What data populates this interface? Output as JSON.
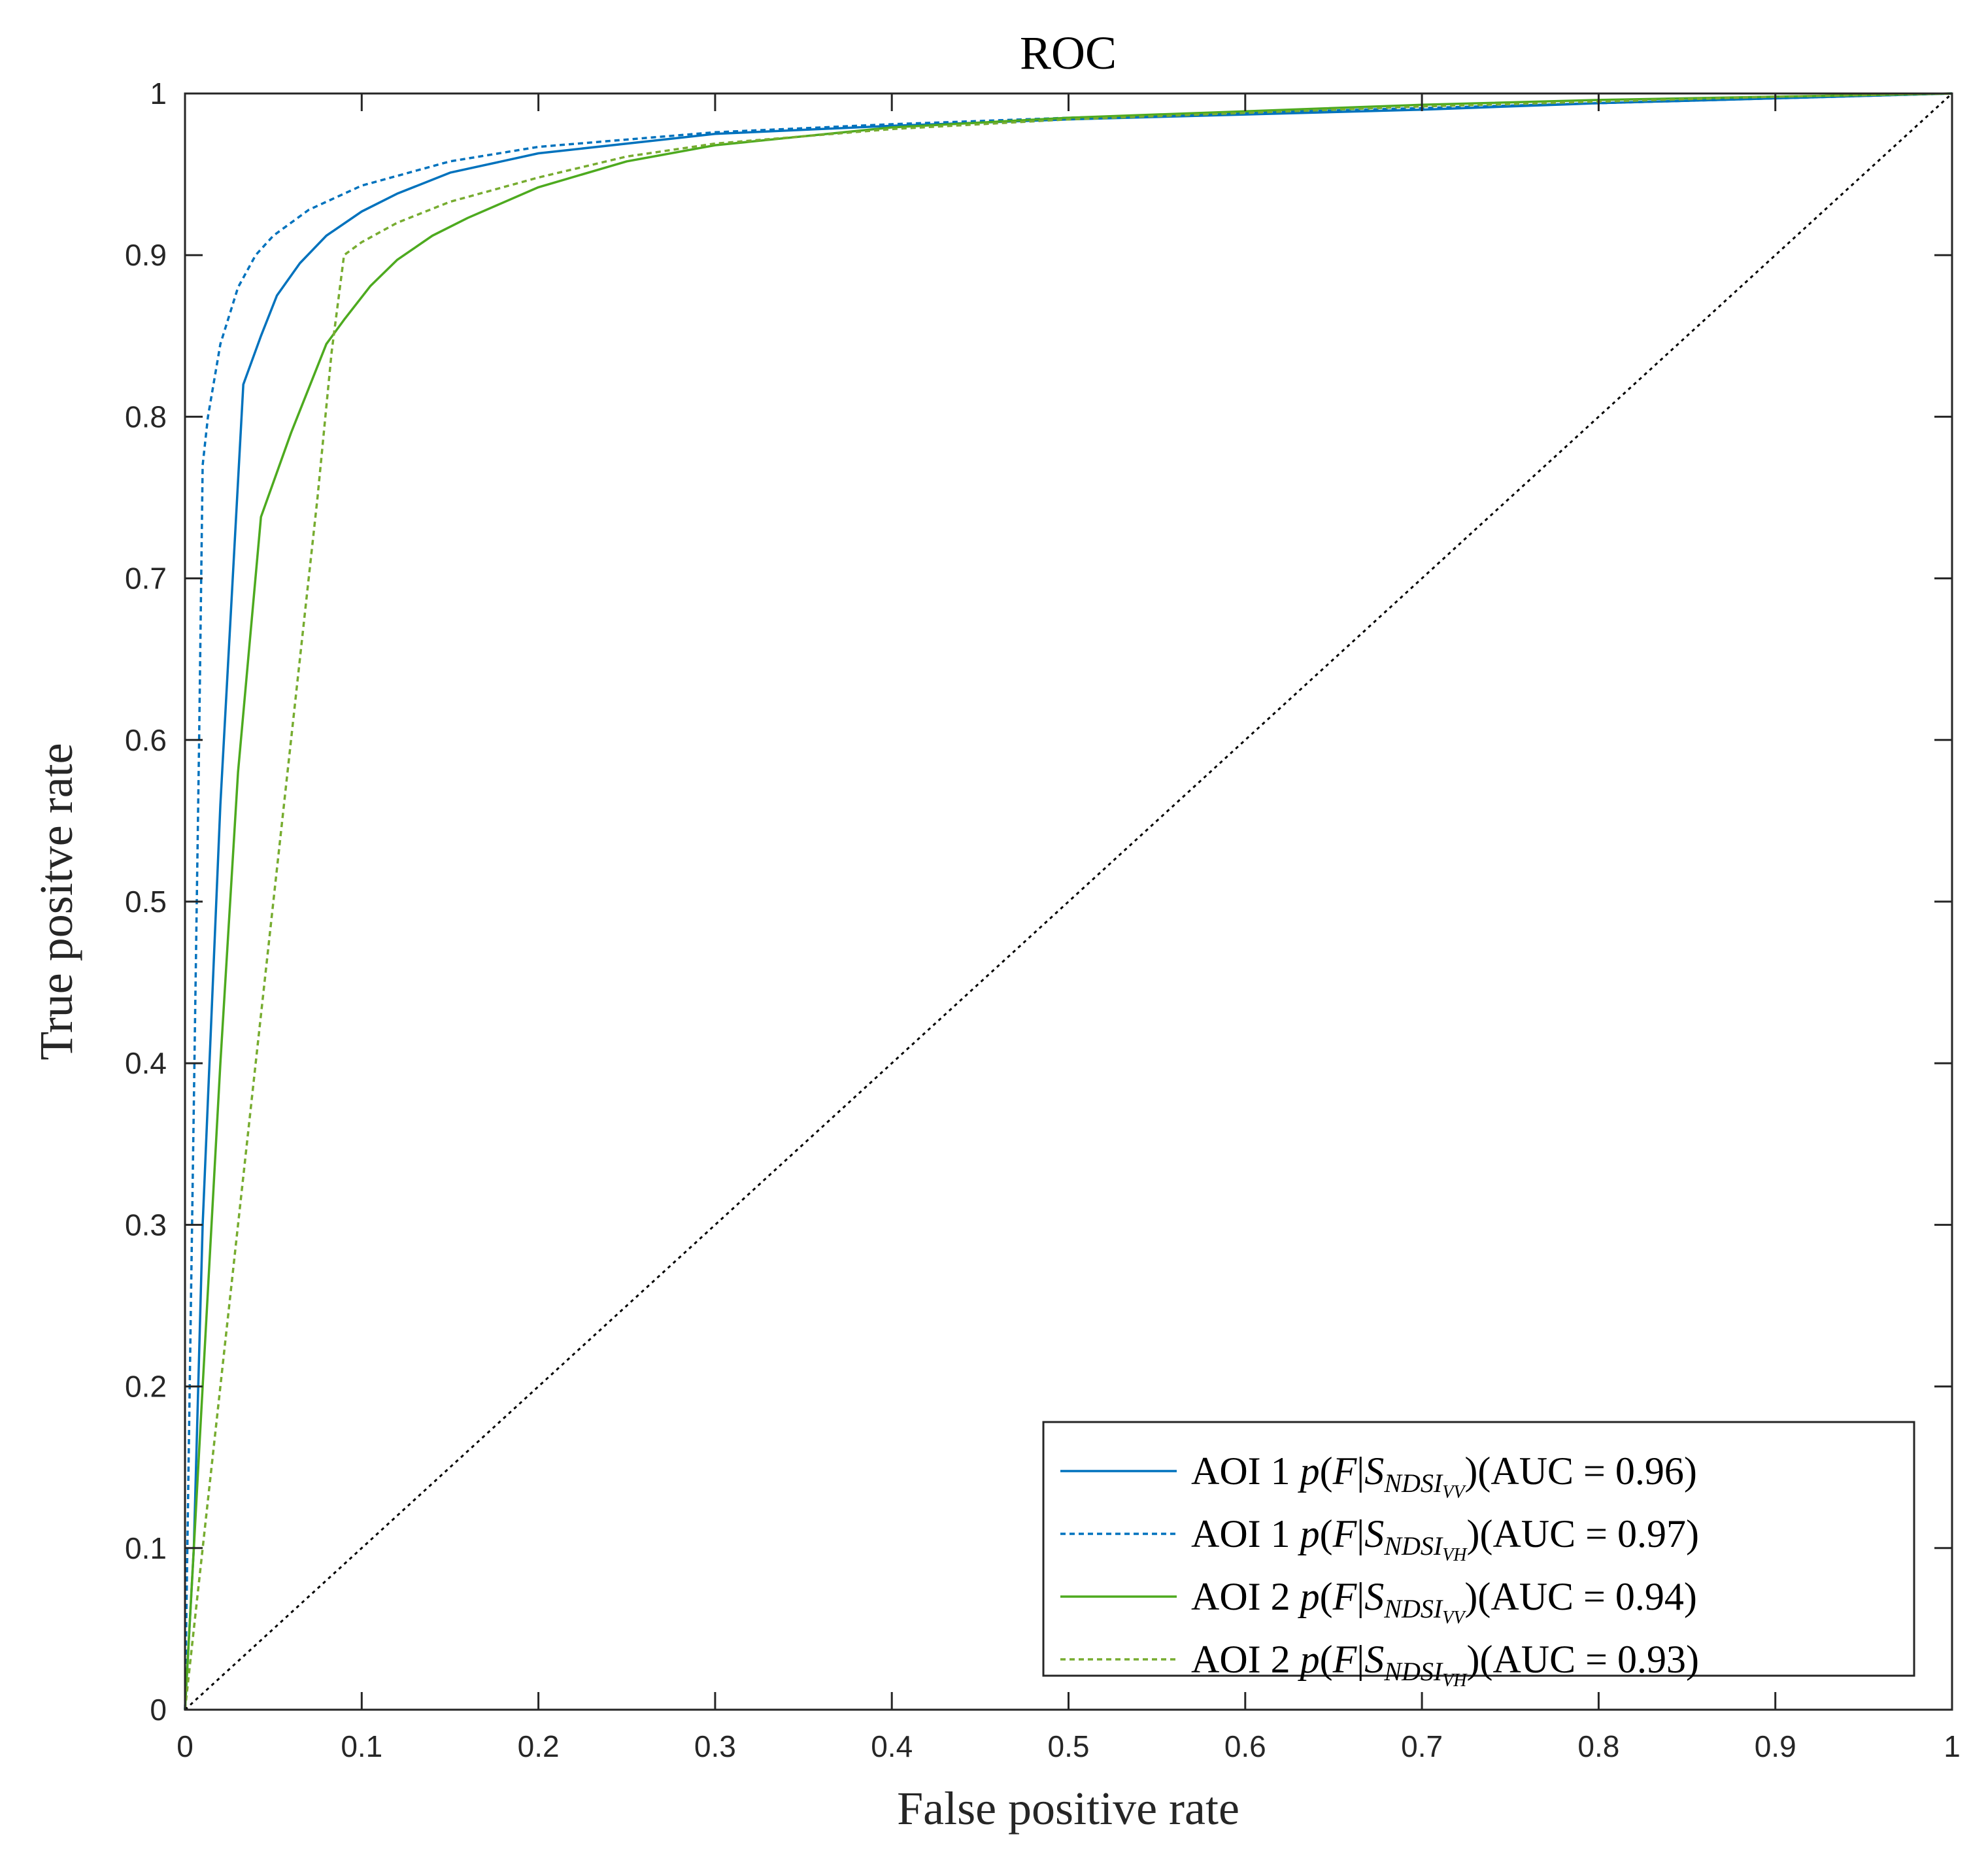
{
  "chart_data": {
    "type": "line",
    "title": "ROC",
    "xlabel": "False positive rate",
    "ylabel": "True positve rate",
    "xlim": [
      0,
      1
    ],
    "ylim": [
      0,
      1
    ],
    "xticks": [
      "0",
      "0.1",
      "0.2",
      "0.3",
      "0.4",
      "0.5",
      "0.6",
      "0.7",
      "0.8",
      "0.9",
      "1"
    ],
    "yticks": [
      "0",
      "0.1",
      "0.2",
      "0.3",
      "0.4",
      "0.5",
      "0.6",
      "0.7",
      "0.8",
      "0.9",
      "1"
    ],
    "grid": false,
    "legend_position": "bottom-right",
    "series": [
      {
        "legend": {
          "prefix": "AOI 1 ",
          "p": "p",
          "open": "(",
          "F": "F",
          "bar": "|",
          "S": "S",
          "sub": "NDSI",
          "subsub": "VV",
          "close": ")",
          "auc": "(AUC = 0.96)"
        },
        "color": "#0072BD",
        "dash": "solid",
        "x": [
          0,
          0.005,
          0.01,
          0.02,
          0.033,
          0.043,
          0.052,
          0.065,
          0.08,
          0.1,
          0.12,
          0.15,
          0.2,
          0.3,
          0.4,
          0.5,
          0.6,
          0.7,
          0.8,
          0.9,
          1.0
        ],
        "y": [
          0,
          0.1,
          0.3,
          0.56,
          0.82,
          0.85,
          0.875,
          0.895,
          0.912,
          0.927,
          0.938,
          0.951,
          0.963,
          0.975,
          0.98,
          0.984,
          0.987,
          0.99,
          0.994,
          0.997,
          1.0
        ]
      },
      {
        "legend": {
          "prefix": "AOI 1 ",
          "p": "p",
          "open": "(",
          "F": "F",
          "bar": "|",
          "S": "S",
          "sub": "NDSI",
          "subsub": "VH",
          "close": ")",
          "auc": "(AUC = 0.97)"
        },
        "color": "#0072BD",
        "dash": "dashed",
        "x": [
          0,
          0.004,
          0.008,
          0.01,
          0.013,
          0.02,
          0.03,
          0.04,
          0.05,
          0.07,
          0.1,
          0.15,
          0.2,
          0.3,
          0.4,
          0.5,
          0.6,
          0.7,
          0.8,
          0.9,
          1.0
        ],
        "y": [
          0,
          0.3,
          0.6,
          0.77,
          0.8,
          0.845,
          0.88,
          0.9,
          0.912,
          0.928,
          0.943,
          0.958,
          0.967,
          0.976,
          0.981,
          0.985,
          0.988,
          0.991,
          0.994,
          0.997,
          1.0
        ]
      },
      {
        "legend": {
          "prefix": "AOI 2 ",
          "p": "p",
          "open": "(",
          "F": "F",
          "bar": "|",
          "S": "S",
          "sub": "NDSI",
          "subsub": "VV",
          "close": ")",
          "auc": "(AUC = 0.94)"
        },
        "color": "#4DAA1F",
        "dash": "solid",
        "x": [
          0,
          0.01,
          0.02,
          0.03,
          0.043,
          0.06,
          0.08,
          0.09,
          0.105,
          0.12,
          0.14,
          0.16,
          0.2,
          0.25,
          0.3,
          0.4,
          0.5,
          0.6,
          0.7,
          0.8,
          0.9,
          1.0
        ],
        "y": [
          0,
          0.2,
          0.4,
          0.58,
          0.738,
          0.79,
          0.845,
          0.86,
          0.881,
          0.897,
          0.912,
          0.923,
          0.942,
          0.958,
          0.968,
          0.979,
          0.985,
          0.989,
          0.993,
          0.996,
          0.998,
          1.0
        ]
      },
      {
        "legend": {
          "prefix": "AOI 2 ",
          "p": "p",
          "open": "(",
          "F": "F",
          "bar": "|",
          "S": "S",
          "sub": "NDSI",
          "subsub": "VH",
          "close": ")",
          "auc": "(AUC = 0.93)"
        },
        "color": "#77AC30",
        "dash": "dashed",
        "x": [
          0,
          0.02,
          0.04,
          0.06,
          0.075,
          0.083,
          0.09,
          0.1,
          0.12,
          0.15,
          0.2,
          0.25,
          0.3,
          0.4,
          0.5,
          0.6,
          0.7,
          0.8,
          0.9,
          1.0
        ],
        "y": [
          0,
          0.2,
          0.4,
          0.6,
          0.75,
          0.84,
          0.9,
          0.908,
          0.92,
          0.933,
          0.948,
          0.961,
          0.969,
          0.978,
          0.984,
          0.988,
          0.992,
          0.995,
          0.998,
          1.0
        ]
      },
      {
        "color": "#000000",
        "dash": "dotted",
        "x": [
          0,
          1
        ],
        "y": [
          0,
          1
        ]
      }
    ]
  }
}
